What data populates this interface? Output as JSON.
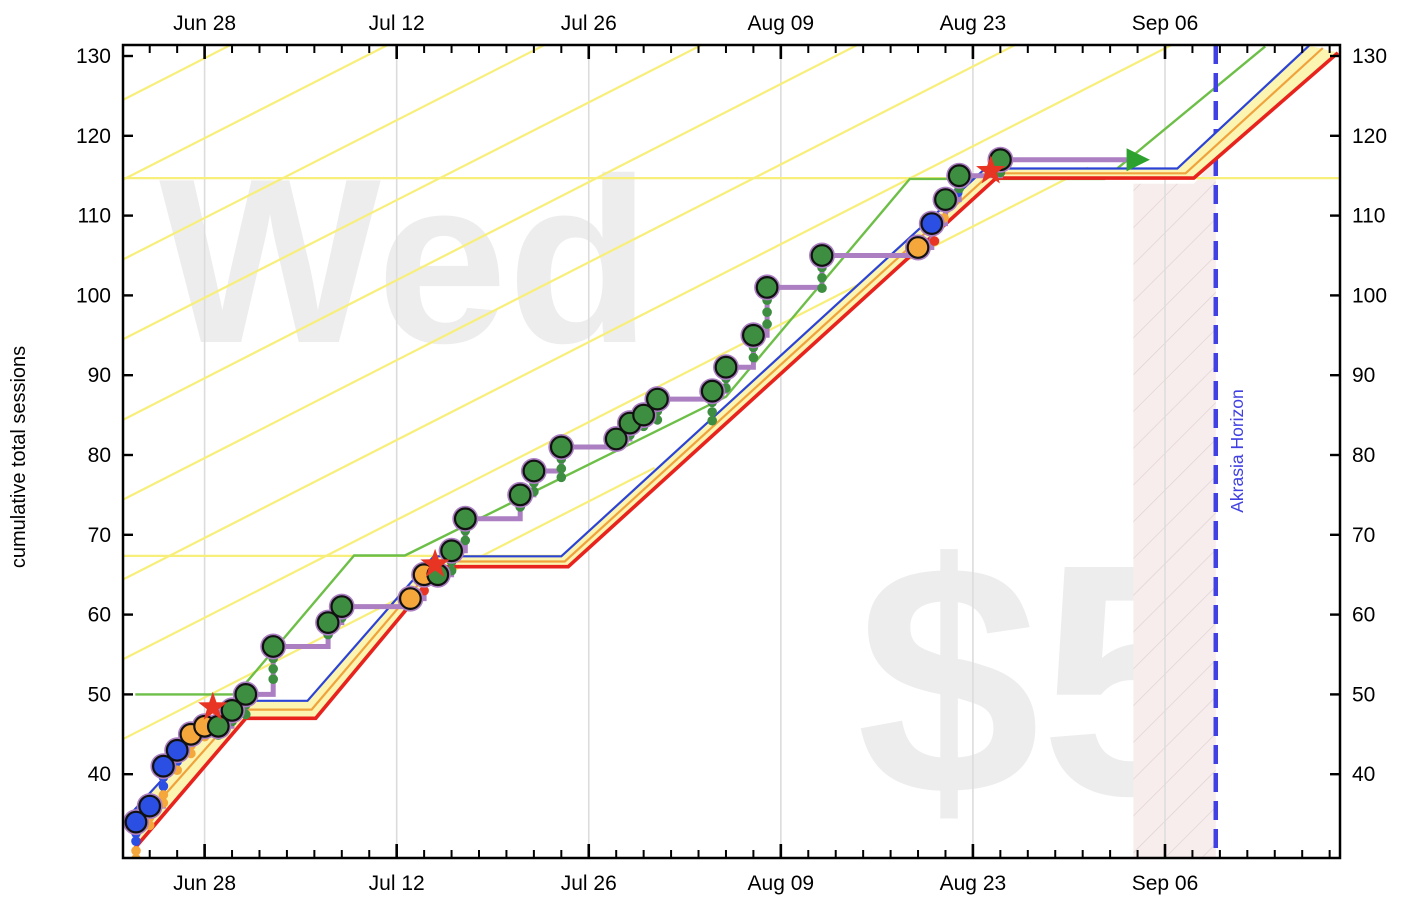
{
  "chart_data": {
    "type": "line",
    "title": "",
    "ylabel": "cumulative total sessions",
    "watermarks": {
      "weekday": "Wed",
      "pledge": "$5"
    },
    "akrasia_label": "Akrasia Horizon",
    "akrasia_day": 78.7,
    "pink_region": [
      [
        72.7,
        114.0
      ],
      [
        77.1,
        114.0
      ],
      [
        78.7,
        117.0
      ],
      [
        78.7,
        29.5
      ],
      [
        72.7,
        29.5
      ]
    ],
    "x_ticks": [
      {
        "day": 5,
        "label": "Jun 28"
      },
      {
        "day": 19,
        "label": "Jul 12"
      },
      {
        "day": 33,
        "label": "Jul 26"
      },
      {
        "day": 47,
        "label": "Aug 09"
      },
      {
        "day": 61,
        "label": "Aug 23"
      },
      {
        "day": 75,
        "label": "Sep 06"
      }
    ],
    "minor_tick_step_days": 2,
    "minor_tick_start_day": -1,
    "minor_tick_end_day": 87,
    "y_ticks": [
      40,
      50,
      60,
      70,
      80,
      90,
      100,
      110,
      120,
      130
    ],
    "ylim": [
      29.5,
      130.9
    ],
    "xlim_days": [
      -0.95,
      87.8
    ],
    "grid": true,
    "datapoints": [
      {
        "day": 0,
        "date": "Jun 23",
        "value": 34,
        "color": "blue"
      },
      {
        "day": 1,
        "date": "Jun 24",
        "value": 36,
        "color": "blue"
      },
      {
        "day": 2,
        "date": "Jun 25",
        "value": 41,
        "color": "blue"
      },
      {
        "day": 3,
        "date": "Jun 26",
        "value": 43,
        "color": "blue"
      },
      {
        "day": 4,
        "date": "Jun 27",
        "value": 45,
        "color": "orange"
      },
      {
        "day": 5,
        "date": "Jun 28",
        "value": 46,
        "color": "orange"
      },
      {
        "day": 6,
        "date": "Jun 29",
        "value": 46,
        "color": "green"
      },
      {
        "day": 7,
        "date": "Jun 30",
        "value": 48,
        "color": "green"
      },
      {
        "day": 8,
        "date": "Jul 01",
        "value": 50,
        "color": "green"
      },
      {
        "day": 10,
        "date": "Jul 03",
        "value": 56,
        "color": "green"
      },
      {
        "day": 14,
        "date": "Jul 07",
        "value": 59,
        "color": "green"
      },
      {
        "day": 15,
        "date": "Jul 08",
        "value": 61,
        "color": "green"
      },
      {
        "day": 20,
        "date": "Jul 13",
        "value": 62,
        "color": "orange"
      },
      {
        "day": 21,
        "date": "Jul 14",
        "value": 65,
        "color": "orange"
      },
      {
        "day": 22,
        "date": "Jul 15",
        "value": 65,
        "color": "green"
      },
      {
        "day": 23,
        "date": "Jul 16",
        "value": 68,
        "color": "green"
      },
      {
        "day": 24,
        "date": "Jul 17",
        "value": 72,
        "color": "green"
      },
      {
        "day": 28,
        "date": "Jul 21",
        "value": 75,
        "color": "green"
      },
      {
        "day": 29,
        "date": "Jul 22",
        "value": 78,
        "color": "green"
      },
      {
        "day": 31,
        "date": "Jul 24",
        "value": 81,
        "color": "green"
      },
      {
        "day": 35,
        "date": "Jul 28",
        "value": 82,
        "color": "green"
      },
      {
        "day": 36,
        "date": "Jul 29",
        "value": 84,
        "color": "green"
      },
      {
        "day": 37,
        "date": "Jul 30",
        "value": 85,
        "color": "green"
      },
      {
        "day": 38,
        "date": "Jul 31",
        "value": 87,
        "color": "green"
      },
      {
        "day": 42,
        "date": "Aug 04",
        "value": 88,
        "color": "green"
      },
      {
        "day": 43,
        "date": "Aug 05",
        "value": 91,
        "color": "green"
      },
      {
        "day": 45,
        "date": "Aug 07",
        "value": 95,
        "color": "green"
      },
      {
        "day": 46,
        "date": "Aug 08",
        "value": 101,
        "color": "green"
      },
      {
        "day": 50,
        "date": "Aug 12",
        "value": 105,
        "color": "green"
      },
      {
        "day": 57,
        "date": "Aug 19",
        "value": 106,
        "color": "orange"
      },
      {
        "day": 58,
        "date": "Aug 20",
        "value": 109,
        "color": "blue"
      },
      {
        "day": 59,
        "date": "Aug 21",
        "value": 112,
        "color": "green"
      },
      {
        "day": 60,
        "date": "Aug 22",
        "value": 115,
        "color": "green"
      },
      {
        "day": 63,
        "date": "Aug 25",
        "value": 117,
        "color": "green"
      }
    ],
    "small_points": [
      [
        0,
        32.6,
        "blue"
      ],
      [
        0,
        31.6,
        "blue"
      ],
      [
        0,
        30.4,
        "orange"
      ],
      [
        0,
        29.4,
        "orange"
      ],
      [
        0,
        28.6,
        "orange"
      ],
      [
        1,
        34.6,
        "orange"
      ],
      [
        1,
        33.6,
        "orange"
      ],
      [
        2,
        39.6,
        "blue"
      ],
      [
        2,
        38.5,
        "blue"
      ],
      [
        2,
        37.4,
        "orange"
      ],
      [
        2,
        36.4,
        "orange"
      ],
      [
        3,
        41.6,
        "blue"
      ],
      [
        3,
        40.5,
        "orange"
      ],
      [
        4,
        43.6,
        "orange"
      ],
      [
        4,
        42.6,
        "orange"
      ],
      [
        5,
        44.7,
        "orange"
      ],
      [
        6,
        44.9,
        "green"
      ],
      [
        7,
        46.6,
        "green"
      ],
      [
        8,
        48.7,
        "green"
      ],
      [
        8,
        47.5,
        "green"
      ],
      [
        10,
        54.5,
        "green"
      ],
      [
        10,
        53.2,
        "green"
      ],
      [
        10,
        51.9,
        "green"
      ],
      [
        14,
        57.5,
        "green"
      ],
      [
        15,
        59.6,
        "green"
      ],
      [
        21,
        63.9,
        "orange"
      ],
      [
        21,
        63.0,
        "red"
      ],
      [
        23,
        66.6,
        "green"
      ],
      [
        23,
        65.5,
        "green"
      ],
      [
        24,
        70.5,
        "green"
      ],
      [
        24,
        69.3,
        "green"
      ],
      [
        28,
        73.5,
        "green"
      ],
      [
        29,
        76.5,
        "green"
      ],
      [
        29,
        75.4,
        "green"
      ],
      [
        31,
        79.5,
        "green"
      ],
      [
        31,
        78.3,
        "green"
      ],
      [
        31,
        77.2,
        "green"
      ],
      [
        36,
        82.5,
        "green"
      ],
      [
        37,
        83.6,
        "green"
      ],
      [
        38,
        85.5,
        "green"
      ],
      [
        38,
        84.4,
        "green"
      ],
      [
        42,
        86.6,
        "green"
      ],
      [
        42,
        85.4,
        "green"
      ],
      [
        42,
        84.3,
        "green"
      ],
      [
        43,
        89.6,
        "green"
      ],
      [
        43,
        88.4,
        "green"
      ],
      [
        45,
        93.5,
        "green"
      ],
      [
        45,
        92.2,
        "green"
      ],
      [
        46,
        99.4,
        "green"
      ],
      [
        46,
        97.9,
        "green"
      ],
      [
        46,
        96.4,
        "green"
      ],
      [
        50,
        103.5,
        "green"
      ],
      [
        50,
        102.2,
        "green"
      ],
      [
        50,
        100.9,
        "green"
      ],
      [
        58.2,
        106.8,
        "red"
      ],
      [
        58.9,
        109.7,
        "orange"
      ],
      [
        59.9,
        112.9,
        "blue"
      ],
      [
        60,
        113.4,
        "green"
      ],
      [
        63,
        115.4,
        "green"
      ]
    ],
    "derail_stars": [
      [
        5.6,
        48.4
      ],
      [
        21.8,
        66.3
      ],
      [
        62.3,
        115.6
      ]
    ],
    "steppy_end_day": 72.2,
    "arrow_tip_day": 73.9,
    "road": {
      "red": [
        [
          -0.1,
          30.7
        ],
        [
          8.0,
          47.0
        ],
        [
          13.1,
          47.0
        ],
        [
          22.3,
          66.0
        ],
        [
          31.5,
          66.0
        ],
        [
          62.7,
          114.7
        ],
        [
          77.1,
          114.7
        ],
        [
          87.6,
          130.4
        ]
      ],
      "orange": [
        [
          -0.18,
          33.0
        ],
        [
          7.6,
          48.1
        ],
        [
          12.8,
          48.1
        ],
        [
          22.0,
          66.65
        ],
        [
          31.25,
          66.65
        ],
        [
          62.3,
          115.3
        ],
        [
          76.5,
          115.3
        ],
        [
          86.5,
          131.0
        ]
      ],
      "blue": [
        [
          -0.25,
          35.3
        ],
        [
          7.2,
          49.2
        ],
        [
          12.5,
          49.2
        ],
        [
          21.7,
          67.3
        ],
        [
          31.0,
          67.3
        ],
        [
          61.9,
          115.9
        ],
        [
          75.9,
          115.9
        ],
        [
          85.5,
          131.3
        ]
      ]
    },
    "aura": [
      [
        -0.05,
        50
      ],
      [
        7.3,
        50
      ],
      [
        15.9,
        67.4
      ],
      [
        19.6,
        67.4
      ],
      [
        43,
        87.3
      ],
      [
        48,
        97.5
      ],
      [
        56.4,
        114.6
      ],
      [
        70.6,
        114.6
      ],
      [
        82.3,
        131.2
      ]
    ],
    "guidelines": [
      [
        [
          -0.95,
          124.5
        ],
        [
          6.92,
          131.4
        ]
      ],
      [
        [
          -0.95,
          114.5
        ],
        [
          18.37,
          131.4
        ]
      ],
      [
        [
          -0.95,
          104.5
        ],
        [
          29.8,
          131.4
        ]
      ],
      [
        [
          -0.95,
          94.5
        ],
        [
          41.25,
          131.4
        ]
      ],
      [
        [
          -0.95,
          84.4
        ],
        [
          52.6,
          131.4
        ]
      ],
      [
        [
          -0.95,
          74.4
        ],
        [
          64.1,
          131.4
        ]
      ],
      [
        [
          -0.95,
          64.4
        ],
        [
          75.5,
          131.4
        ]
      ],
      [
        [
          -0.95,
          54.4
        ],
        [
          69.4,
          116.0
        ]
      ],
      [
        [
          -0.95,
          44.4
        ],
        [
          37.8,
          78.4
        ]
      ],
      [
        [
          -0.95,
          114.7
        ],
        [
          87.8,
          114.7
        ]
      ],
      [
        [
          -0.95,
          67.35
        ],
        [
          31.0,
          67.35
        ]
      ]
    ],
    "colors": {
      "red_line": "#e8231d",
      "road_blue": "#2b43d6",
      "road_orange": "#f0a33c",
      "band_fill": "#fcf4b1",
      "aura_green": "#6dbf48",
      "guideline_yellow": "#f8ef7a",
      "dot_green": "#3e8e41",
      "dot_blue": "#2b4fe3",
      "dot_orange": "#f5a73b",
      "dot_red": "#e83423",
      "steppy_purple": "#ab7fc2",
      "arrow_green": "#2da12d",
      "akrasia_blue": "#4141e3",
      "pink_fill": "#f8eded",
      "pink_hatch": "#dfd2d2",
      "grid": "#dcdcdc",
      "watermark": "#ededed",
      "axis": "#000000"
    },
    "legend_position": "none"
  }
}
